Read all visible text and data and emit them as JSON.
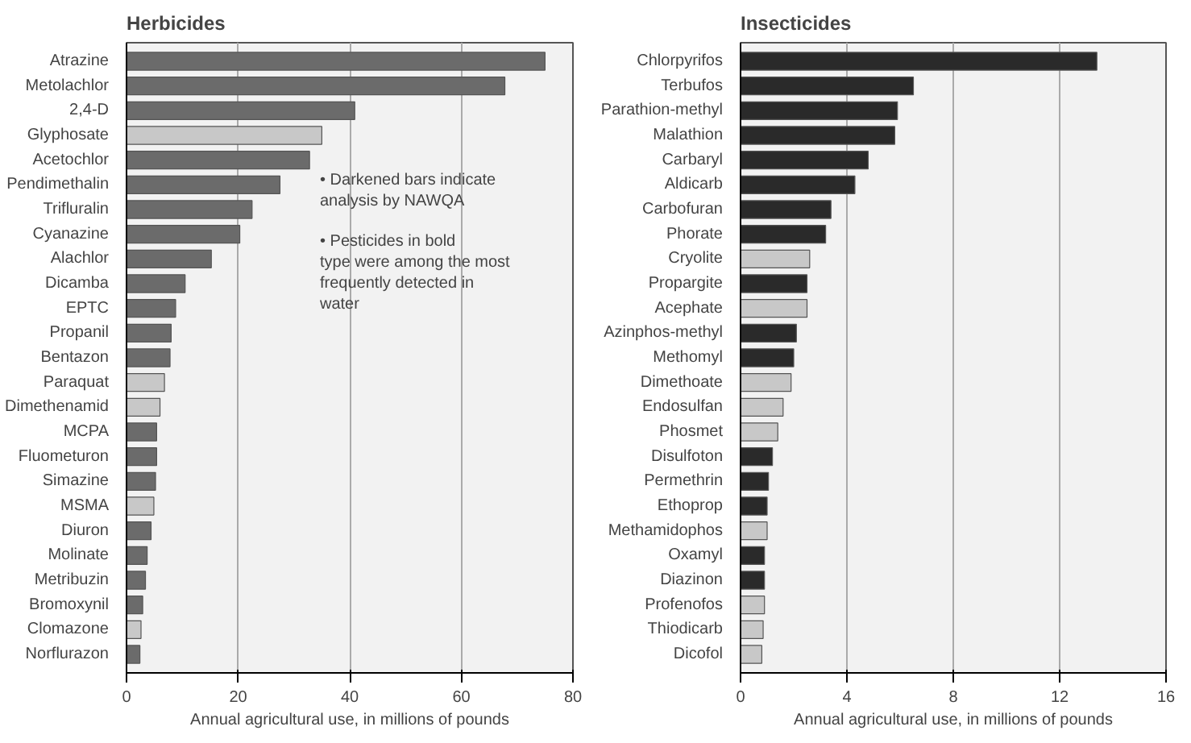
{
  "chart_data": [
    {
      "type": "bar",
      "orientation": "horizontal",
      "title": "Herbicides",
      "xlabel": "Annual agricultural use, in millions of pounds",
      "categories": [
        "Atrazine",
        "Metolachlor",
        "2,4-D",
        "Glyphosate",
        "Acetochlor",
        "Pendimethalin",
        "Trifluralin",
        "Cyanazine",
        "Alachlor",
        "Dicamba",
        "EPTC",
        "Propanil",
        "Bentazon",
        "Paraquat",
        "Dimethenamid",
        "MCPA",
        "Fluometuron",
        "Simazine",
        "MSMA",
        "Diuron",
        "Molinate",
        "Metribuzin",
        "Bromoxynil",
        "Clomazone",
        "Norflurazon"
      ],
      "values": [
        75,
        67.8,
        40.9,
        35,
        32.8,
        27.5,
        22.5,
        20.3,
        15.2,
        10.5,
        8.8,
        8,
        7.8,
        6.8,
        6,
        5.4,
        5.4,
        5.2,
        4.9,
        4.4,
        3.7,
        3.4,
        2.9,
        2.6,
        2.4
      ],
      "colors": [
        "#6b6b6b",
        "#6b6b6b",
        "#6b6b6b",
        "#c8c8c8",
        "#6b6b6b",
        "#6b6b6b",
        "#6b6b6b",
        "#6b6b6b",
        "#6b6b6b",
        "#6b6b6b",
        "#6b6b6b",
        "#6b6b6b",
        "#6b6b6b",
        "#c8c8c8",
        "#c8c8c8",
        "#6b6b6b",
        "#6b6b6b",
        "#6b6b6b",
        "#c8c8c8",
        "#6b6b6b",
        "#6b6b6b",
        "#6b6b6b",
        "#6b6b6b",
        "#c8c8c8",
        "#6b6b6b"
      ],
      "xlim": [
        0,
        80
      ],
      "xticks": [
        0,
        20,
        40,
        60,
        80
      ],
      "grid": "x",
      "annotations": [
        "• Darkened bars indicate analysis by NAWQA",
        "• Pesticides in bold type were among the most frequently detected in water"
      ]
    },
    {
      "type": "bar",
      "orientation": "horizontal",
      "title": "Insecticides",
      "xlabel": "Annual agricultural use, in millions of pounds",
      "categories": [
        "Chlorpyrifos",
        "Terbufos",
        "Parathion-methyl",
        "Malathion",
        "Carbaryl",
        "Aldicarb",
        "Carbofuran",
        "Phorate",
        "Cryolite",
        "Propargite",
        "Acephate",
        "Azinphos-methyl",
        "Methomyl",
        "Dimethoate",
        "Endosulfan",
        "Phosmet",
        "Disulfoton",
        "Permethrin",
        "Ethoprop",
        "Methamidophos",
        "Oxamyl",
        "Diazinon",
        "Profenofos",
        "Thiodicarb",
        "Dicofol"
      ],
      "values": [
        13.4,
        6.5,
        5.9,
        5.8,
        4.8,
        4.3,
        3.4,
        3.2,
        2.6,
        2.5,
        2.5,
        2.1,
        2.0,
        1.9,
        1.6,
        1.4,
        1.2,
        1.05,
        1.0,
        1.0,
        0.9,
        0.9,
        0.9,
        0.85,
        0.8
      ],
      "colors": [
        "#2a2a2a",
        "#2a2a2a",
        "#2a2a2a",
        "#2a2a2a",
        "#2a2a2a",
        "#2a2a2a",
        "#2a2a2a",
        "#2a2a2a",
        "#c8c8c8",
        "#2a2a2a",
        "#c8c8c8",
        "#2a2a2a",
        "#2a2a2a",
        "#c8c8c8",
        "#c8c8c8",
        "#c8c8c8",
        "#2a2a2a",
        "#2a2a2a",
        "#2a2a2a",
        "#c8c8c8",
        "#2a2a2a",
        "#2a2a2a",
        "#c8c8c8",
        "#c8c8c8",
        "#c8c8c8"
      ],
      "xlim": [
        0,
        16
      ],
      "xticks": [
        0,
        4,
        8,
        12,
        16
      ],
      "grid": "x"
    }
  ]
}
